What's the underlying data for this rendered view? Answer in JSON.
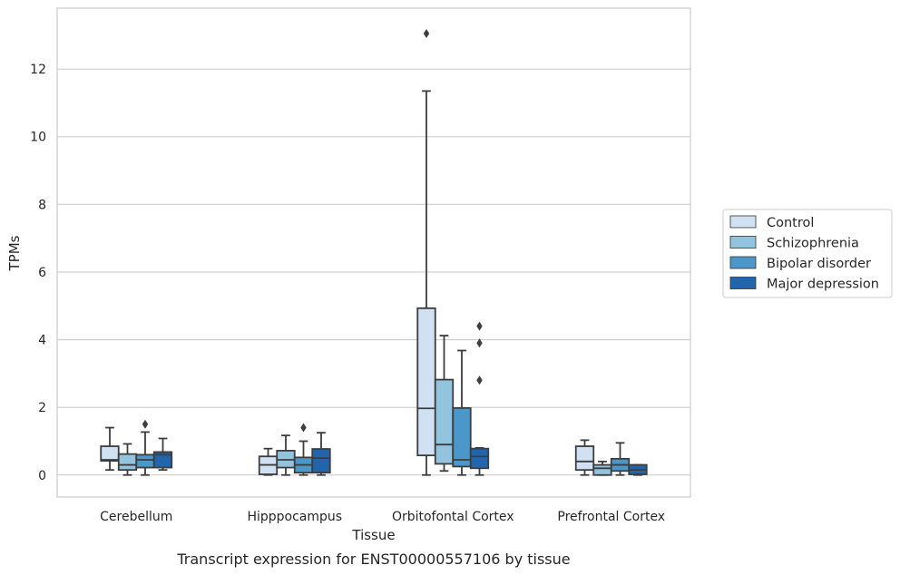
{
  "chart_data": {
    "type": "boxplot",
    "xlabel": "Tissue",
    "ylabel": "TPMs",
    "caption": "Transcript expression for ENST00000557106 by tissue",
    "ylim": [
      -0.65,
      13.8
    ],
    "yticks": [
      0,
      2,
      4,
      6,
      8,
      10,
      12
    ],
    "grid": "horizontal",
    "legend_position": "right",
    "categories": [
      "Cerebellum",
      "Hipppocampus",
      "Orbitofontal Cortex",
      "Prefrontal Cortex"
    ],
    "series": [
      {
        "name": "Control",
        "color": "#cfe1f2",
        "boxes": [
          {
            "whislo": 0.15,
            "q1": 0.42,
            "med": 0.45,
            "q3": 0.85,
            "whishi": 1.4,
            "fliers": []
          },
          {
            "whislo": 0.0,
            "q1": 0.02,
            "med": 0.3,
            "q3": 0.55,
            "whishi": 0.78,
            "fliers": []
          },
          {
            "whislo": 0.0,
            "q1": 0.58,
            "med": 1.97,
            "q3": 4.93,
            "whishi": 11.35,
            "fliers": [
              13.05
            ]
          },
          {
            "whislo": 0.0,
            "q1": 0.15,
            "med": 0.4,
            "q3": 0.85,
            "whishi": 1.03,
            "fliers": []
          }
        ]
      },
      {
        "name": "Schizophrenia",
        "color": "#93c4de",
        "boxes": [
          {
            "whislo": 0.0,
            "q1": 0.15,
            "med": 0.3,
            "q3": 0.62,
            "whishi": 0.92,
            "fliers": []
          },
          {
            "whislo": 0.0,
            "q1": 0.22,
            "med": 0.45,
            "q3": 0.72,
            "whishi": 1.17,
            "fliers": []
          },
          {
            "whislo": 0.12,
            "q1": 0.33,
            "med": 0.9,
            "q3": 2.82,
            "whishi": 4.12,
            "fliers": []
          },
          {
            "whislo": 0.0,
            "q1": 0.0,
            "med": 0.2,
            "q3": 0.3,
            "whishi": 0.4,
            "fliers": []
          }
        ]
      },
      {
        "name": "Bipolar disorder",
        "color": "#4a98c9",
        "boxes": [
          {
            "whislo": 0.0,
            "q1": 0.22,
            "med": 0.45,
            "q3": 0.6,
            "whishi": 1.27,
            "fliers": [
              1.5
            ]
          },
          {
            "whislo": 0.0,
            "q1": 0.07,
            "med": 0.3,
            "q3": 0.52,
            "whishi": 1.0,
            "fliers": [
              1.4
            ]
          },
          {
            "whislo": 0.0,
            "q1": 0.25,
            "med": 0.45,
            "q3": 1.98,
            "whishi": 3.68,
            "fliers": []
          },
          {
            "whislo": 0.0,
            "q1": 0.12,
            "med": 0.3,
            "q3": 0.48,
            "whishi": 0.95,
            "fliers": []
          }
        ]
      },
      {
        "name": "Major depression",
        "color": "#2166ac",
        "boxes": [
          {
            "whislo": 0.15,
            "q1": 0.22,
            "med": 0.6,
            "q3": 0.68,
            "whishi": 1.08,
            "fliers": []
          },
          {
            "whislo": 0.0,
            "q1": 0.07,
            "med": 0.5,
            "q3": 0.77,
            "whishi": 1.25,
            "fliers": []
          },
          {
            "whislo": 0.0,
            "q1": 0.2,
            "med": 0.55,
            "q3": 0.78,
            "whishi": 0.8,
            "fliers": [
              2.8,
              3.9,
              4.4
            ]
          },
          {
            "whislo": 0.0,
            "q1": 0.02,
            "med": 0.15,
            "q3": 0.3,
            "whishi": 0.3,
            "fliers": []
          }
        ]
      }
    ]
  }
}
